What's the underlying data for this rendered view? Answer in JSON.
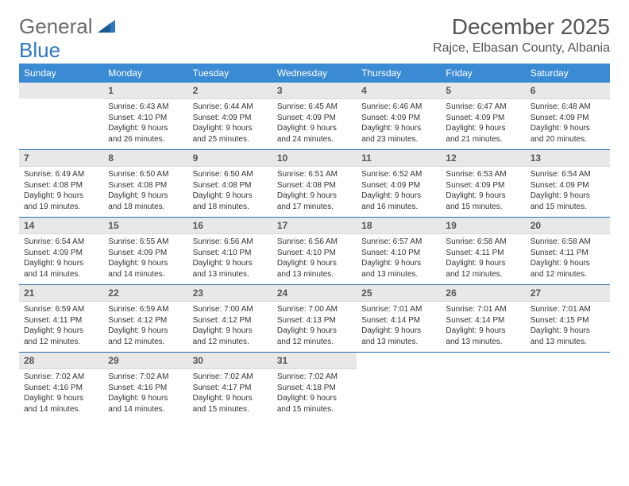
{
  "brand": {
    "part1": "General",
    "part2": "Blue"
  },
  "title": "December 2025",
  "location": "Rajce, Elbasan County, Albania",
  "colors": {
    "header_bg": "#3b8bd4",
    "header_text": "#ffffff",
    "date_bg": "#e8e8e8",
    "week_border": "#2b6aa8",
    "body_text": "#333333",
    "title_text": "#555555",
    "logo_gray": "#6b6b6b",
    "logo_blue": "#2f78c2"
  },
  "day_names": [
    "Sunday",
    "Monday",
    "Tuesday",
    "Wednesday",
    "Thursday",
    "Friday",
    "Saturday"
  ],
  "weeks": [
    [
      {
        "date": "",
        "sunrise": "",
        "sunset": "",
        "daylight": ""
      },
      {
        "date": "1",
        "sunrise": "Sunrise: 6:43 AM",
        "sunset": "Sunset: 4:10 PM",
        "daylight": "Daylight: 9 hours and 26 minutes."
      },
      {
        "date": "2",
        "sunrise": "Sunrise: 6:44 AM",
        "sunset": "Sunset: 4:09 PM",
        "daylight": "Daylight: 9 hours and 25 minutes."
      },
      {
        "date": "3",
        "sunrise": "Sunrise: 6:45 AM",
        "sunset": "Sunset: 4:09 PM",
        "daylight": "Daylight: 9 hours and 24 minutes."
      },
      {
        "date": "4",
        "sunrise": "Sunrise: 6:46 AM",
        "sunset": "Sunset: 4:09 PM",
        "daylight": "Daylight: 9 hours and 23 minutes."
      },
      {
        "date": "5",
        "sunrise": "Sunrise: 6:47 AM",
        "sunset": "Sunset: 4:09 PM",
        "daylight": "Daylight: 9 hours and 21 minutes."
      },
      {
        "date": "6",
        "sunrise": "Sunrise: 6:48 AM",
        "sunset": "Sunset: 4:09 PM",
        "daylight": "Daylight: 9 hours and 20 minutes."
      }
    ],
    [
      {
        "date": "7",
        "sunrise": "Sunrise: 6:49 AM",
        "sunset": "Sunset: 4:08 PM",
        "daylight": "Daylight: 9 hours and 19 minutes."
      },
      {
        "date": "8",
        "sunrise": "Sunrise: 6:50 AM",
        "sunset": "Sunset: 4:08 PM",
        "daylight": "Daylight: 9 hours and 18 minutes."
      },
      {
        "date": "9",
        "sunrise": "Sunrise: 6:50 AM",
        "sunset": "Sunset: 4:08 PM",
        "daylight": "Daylight: 9 hours and 18 minutes."
      },
      {
        "date": "10",
        "sunrise": "Sunrise: 6:51 AM",
        "sunset": "Sunset: 4:08 PM",
        "daylight": "Daylight: 9 hours and 17 minutes."
      },
      {
        "date": "11",
        "sunrise": "Sunrise: 6:52 AM",
        "sunset": "Sunset: 4:09 PM",
        "daylight": "Daylight: 9 hours and 16 minutes."
      },
      {
        "date": "12",
        "sunrise": "Sunrise: 6:53 AM",
        "sunset": "Sunset: 4:09 PM",
        "daylight": "Daylight: 9 hours and 15 minutes."
      },
      {
        "date": "13",
        "sunrise": "Sunrise: 6:54 AM",
        "sunset": "Sunset: 4:09 PM",
        "daylight": "Daylight: 9 hours and 15 minutes."
      }
    ],
    [
      {
        "date": "14",
        "sunrise": "Sunrise: 6:54 AM",
        "sunset": "Sunset: 4:09 PM",
        "daylight": "Daylight: 9 hours and 14 minutes."
      },
      {
        "date": "15",
        "sunrise": "Sunrise: 6:55 AM",
        "sunset": "Sunset: 4:09 PM",
        "daylight": "Daylight: 9 hours and 14 minutes."
      },
      {
        "date": "16",
        "sunrise": "Sunrise: 6:56 AM",
        "sunset": "Sunset: 4:10 PM",
        "daylight": "Daylight: 9 hours and 13 minutes."
      },
      {
        "date": "17",
        "sunrise": "Sunrise: 6:56 AM",
        "sunset": "Sunset: 4:10 PM",
        "daylight": "Daylight: 9 hours and 13 minutes."
      },
      {
        "date": "18",
        "sunrise": "Sunrise: 6:57 AM",
        "sunset": "Sunset: 4:10 PM",
        "daylight": "Daylight: 9 hours and 13 minutes."
      },
      {
        "date": "19",
        "sunrise": "Sunrise: 6:58 AM",
        "sunset": "Sunset: 4:11 PM",
        "daylight": "Daylight: 9 hours and 12 minutes."
      },
      {
        "date": "20",
        "sunrise": "Sunrise: 6:58 AM",
        "sunset": "Sunset: 4:11 PM",
        "daylight": "Daylight: 9 hours and 12 minutes."
      }
    ],
    [
      {
        "date": "21",
        "sunrise": "Sunrise: 6:59 AM",
        "sunset": "Sunset: 4:11 PM",
        "daylight": "Daylight: 9 hours and 12 minutes."
      },
      {
        "date": "22",
        "sunrise": "Sunrise: 6:59 AM",
        "sunset": "Sunset: 4:12 PM",
        "daylight": "Daylight: 9 hours and 12 minutes."
      },
      {
        "date": "23",
        "sunrise": "Sunrise: 7:00 AM",
        "sunset": "Sunset: 4:12 PM",
        "daylight": "Daylight: 9 hours and 12 minutes."
      },
      {
        "date": "24",
        "sunrise": "Sunrise: 7:00 AM",
        "sunset": "Sunset: 4:13 PM",
        "daylight": "Daylight: 9 hours and 12 minutes."
      },
      {
        "date": "25",
        "sunrise": "Sunrise: 7:01 AM",
        "sunset": "Sunset: 4:14 PM",
        "daylight": "Daylight: 9 hours and 13 minutes."
      },
      {
        "date": "26",
        "sunrise": "Sunrise: 7:01 AM",
        "sunset": "Sunset: 4:14 PM",
        "daylight": "Daylight: 9 hours and 13 minutes."
      },
      {
        "date": "27",
        "sunrise": "Sunrise: 7:01 AM",
        "sunset": "Sunset: 4:15 PM",
        "daylight": "Daylight: 9 hours and 13 minutes."
      }
    ],
    [
      {
        "date": "28",
        "sunrise": "Sunrise: 7:02 AM",
        "sunset": "Sunset: 4:16 PM",
        "daylight": "Daylight: 9 hours and 14 minutes."
      },
      {
        "date": "29",
        "sunrise": "Sunrise: 7:02 AM",
        "sunset": "Sunset: 4:16 PM",
        "daylight": "Daylight: 9 hours and 14 minutes."
      },
      {
        "date": "30",
        "sunrise": "Sunrise: 7:02 AM",
        "sunset": "Sunset: 4:17 PM",
        "daylight": "Daylight: 9 hours and 15 minutes."
      },
      {
        "date": "31",
        "sunrise": "Sunrise: 7:02 AM",
        "sunset": "Sunset: 4:18 PM",
        "daylight": "Daylight: 9 hours and 15 minutes."
      },
      {
        "date": "",
        "sunrise": "",
        "sunset": "",
        "daylight": ""
      },
      {
        "date": "",
        "sunrise": "",
        "sunset": "",
        "daylight": ""
      },
      {
        "date": "",
        "sunrise": "",
        "sunset": "",
        "daylight": ""
      }
    ]
  ]
}
